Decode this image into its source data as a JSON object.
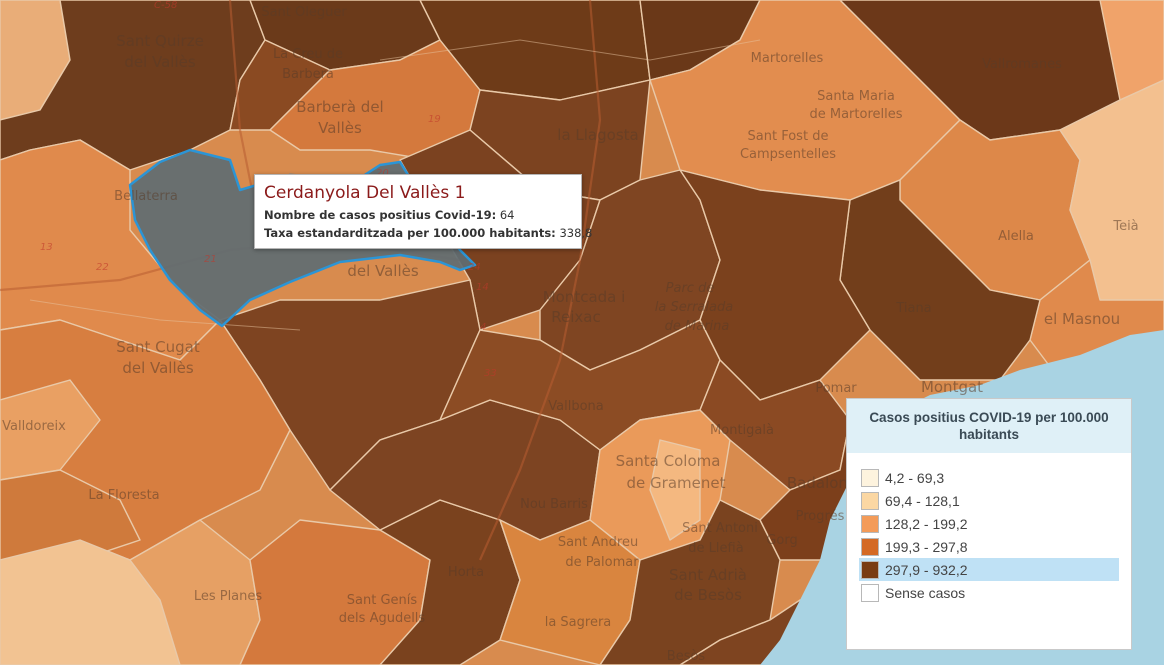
{
  "map": {
    "labels": [
      {
        "text": "Sant Quirze"
      },
      {
        "text": "del Vallès"
      },
      {
        "text": "Sant Oleguer"
      },
      {
        "text": "La Creu de"
      },
      {
        "text": "Barberà"
      },
      {
        "text": "Barberà del"
      },
      {
        "text": "Vallès"
      },
      {
        "text": "la Llagosta"
      },
      {
        "text": "Martorelles"
      },
      {
        "text": "Vallromanes"
      },
      {
        "text": "Santa Maria"
      },
      {
        "text": "de Martorelles"
      },
      {
        "text": "Sant Fost de"
      },
      {
        "text": "Campsentelles"
      },
      {
        "text": "Bellaterra"
      },
      {
        "text": "del Vallès"
      },
      {
        "text": "Montcada i"
      },
      {
        "text": "Reixac"
      },
      {
        "text": "Parc de"
      },
      {
        "text": "la Serralada"
      },
      {
        "text": "de Marina"
      },
      {
        "text": "Tiana"
      },
      {
        "text": "el Masnou"
      },
      {
        "text": "Alella"
      },
      {
        "text": "Teià"
      },
      {
        "text": "Sant Cugat"
      },
      {
        "text": "del Vallès"
      },
      {
        "text": "Valldoreix"
      },
      {
        "text": "La Floresta"
      },
      {
        "text": "Montgat"
      },
      {
        "text": "Pomar"
      },
      {
        "text": "Vallbona"
      },
      {
        "text": "Montigalà"
      },
      {
        "text": "Santa Coloma"
      },
      {
        "text": "de Gramenet"
      },
      {
        "text": "Badalona"
      },
      {
        "text": "Nou Barris"
      },
      {
        "text": "Sant Andreu"
      },
      {
        "text": "de Palomar"
      },
      {
        "text": "Sant Adrià"
      },
      {
        "text": "de Besòs"
      },
      {
        "text": "Sant Genís"
      },
      {
        "text": "dels Agudells"
      },
      {
        "text": "Horta"
      },
      {
        "text": "la Sagrera"
      },
      {
        "text": "Les Planes"
      },
      {
        "text": "Sant Antoni"
      },
      {
        "text": "de Llefià"
      },
      {
        "text": "Gorg"
      },
      {
        "text": "Progrés"
      },
      {
        "text": "Besòs"
      }
    ],
    "road_labels": [
      "C-58",
      "19",
      "13",
      "20",
      "22",
      "24",
      "14",
      "4",
      "33",
      "21"
    ]
  },
  "tooltip": {
    "title": "Cerdanyola Del Vallès 1",
    "cases_label": "Nombre de casos positius Covid-19:",
    "cases_value": "64",
    "rate_label": "Taxa estandarditzada per 100.000 habitants:",
    "rate_value": "338,8"
  },
  "legend": {
    "title": "Casos positius COVID-19 per 100.000 habitants",
    "items": [
      {
        "label": "4,2 - 69,3",
        "color": "#fdf3de",
        "active": false
      },
      {
        "label": "69,4 - 128,1",
        "color": "#fbd7a3",
        "active": false
      },
      {
        "label": "128,2 - 199,2",
        "color": "#f39b59",
        "active": false
      },
      {
        "label": "199,3 - 297,8",
        "color": "#d46a25",
        "active": false
      },
      {
        "label": "297,9 - 932,2",
        "color": "#7a3b12",
        "active": true
      },
      {
        "label": "Sense casos",
        "color": "#ffffff",
        "active": false
      }
    ]
  },
  "colors": {
    "sea": "#a9d3e3",
    "highlight_fill": "#5f6d72",
    "highlight_stroke": "#2b95d6"
  }
}
